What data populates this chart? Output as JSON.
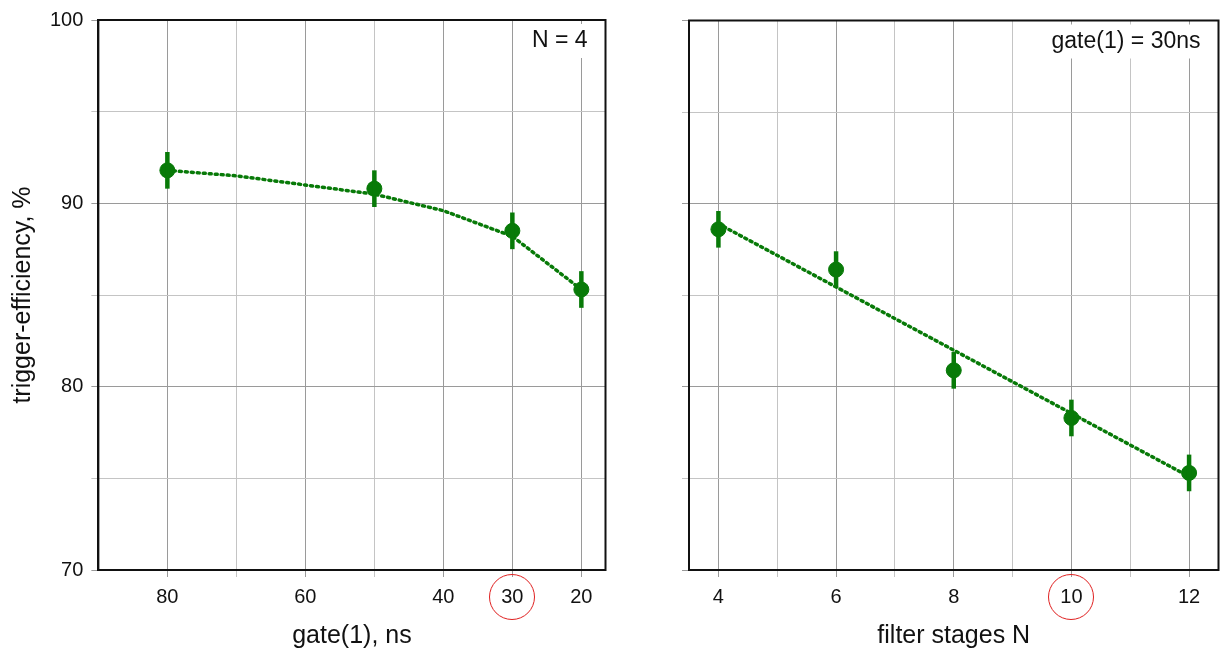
{
  "chart_data": [
    {
      "type": "scatter",
      "xlabel": "gate(1), ns",
      "ylabel": "trigger-efficiency, %",
      "annotations": [
        "N = 4"
      ],
      "xlim": [
        90,
        16.5
      ],
      "xticks": [
        80,
        {
          "value": 70,
          "label": null
        },
        60,
        {
          "value": 50,
          "label": null
        },
        40,
        30,
        20
      ],
      "ylim": [
        70,
        100
      ],
      "yticks": [
        70,
        {
          "value": 75,
          "label": null
        },
        80,
        {
          "value": 85,
          "label": null
        },
        90,
        {
          "value": 95,
          "label": null
        },
        100
      ],
      "grid": true,
      "legend": false,
      "series": [
        {
          "color": "#087a08",
          "marker": "circle",
          "x": [
            80,
            50,
            30,
            20
          ],
          "values": [
            91.8,
            90.8,
            88.5,
            85.3
          ],
          "errors": [
            1.0,
            1.0,
            1.0,
            1.0
          ]
        },
        {
          "type": "line",
          "color": "#087a08",
          "marker": "none",
          "line_style": "dotted",
          "x": [
            80,
            70,
            60,
            50,
            40,
            30,
            20
          ],
          "values": [
            91.8,
            91.5,
            91.0,
            90.5,
            89.6,
            88.2,
            85.3
          ]
        }
      ]
    },
    {
      "type": "scatter",
      "xlabel": "filter stages N",
      "annotations": [
        "gate(1) = 30ns"
      ],
      "tick_labels": "x",
      "xlim": [
        3.5,
        12.5
      ],
      "xticks": [
        4,
        {
          "value": 5,
          "label": null
        },
        6,
        {
          "value": 7,
          "label": null
        },
        8,
        {
          "value": 9,
          "label": null
        },
        10,
        {
          "value": 11,
          "label": null
        },
        12
      ],
      "ylim": [
        70,
        100
      ],
      "yticks": [
        70,
        {
          "value": 75,
          "label": null
        },
        80,
        {
          "value": 85,
          "label": null
        },
        90,
        {
          "value": 95,
          "label": null
        },
        100
      ],
      "grid": true,
      "legend": false,
      "series": [
        {
          "color": "#087a08",
          "marker": "circle",
          "x": [
            4,
            6,
            8,
            10,
            12
          ],
          "values": [
            88.6,
            86.4,
            80.9,
            78.3,
            75.3
          ],
          "errors": [
            1.0,
            1.0,
            1.0,
            1.0,
            1.0
          ]
        },
        {
          "type": "line",
          "color": "#087a08",
          "marker": "none",
          "line_style": "dotted",
          "x": [
            4,
            12
          ],
          "values": [
            88.9,
            75.1
          ]
        }
      ]
    }
  ]
}
